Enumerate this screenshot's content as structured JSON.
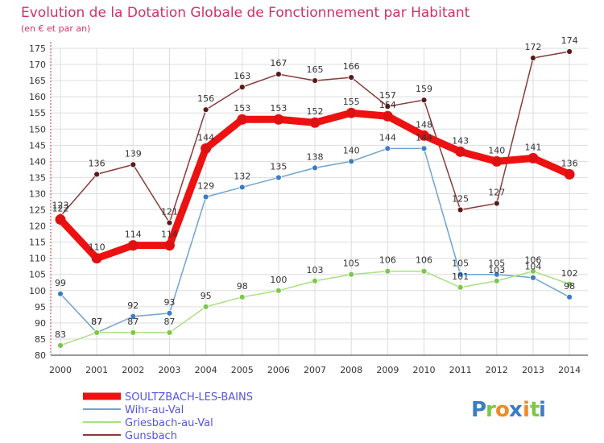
{
  "chart_data": {
    "type": "line",
    "title": "Evolution de la Dotation Globale de Fonctionnement par Habitant",
    "subtitle": "(en € et par an)",
    "ylim": [
      80,
      175
    ],
    "yticks": [
      80,
      85,
      90,
      95,
      100,
      105,
      110,
      115,
      120,
      125,
      130,
      135,
      140,
      145,
      150,
      155,
      160,
      165,
      170,
      175
    ],
    "x": [
      "2000",
      "2001",
      "2002",
      "2003",
      "2004",
      "2005",
      "2006",
      "2007",
      "2008",
      "2009",
      "2010",
      "2011",
      "2012",
      "2013",
      "2014"
    ],
    "grid": true,
    "legend_position": "bottom-left",
    "series": [
      {
        "name": "Gunsbach",
        "color": "#8b3a3a",
        "marker": "#5a1a1a",
        "width": "thin",
        "values": [
          123,
          136,
          139,
          121,
          156,
          163,
          167,
          165,
          166,
          157,
          159,
          125,
          127,
          172,
          174
        ]
      },
      {
        "name": "Wihr-au-Val",
        "color": "#6fa3d0",
        "marker": "#3c7cc4",
        "width": "thin",
        "values": [
          99,
          87,
          92,
          93,
          129,
          132,
          135,
          138,
          140,
          144,
          144,
          105,
          105,
          104,
          98
        ]
      },
      {
        "name": "Griesbach-au-Val",
        "color": "#a8e080",
        "marker": "#7cc84a",
        "width": "thin",
        "values": [
          83,
          87,
          87,
          87,
          95,
          98,
          100,
          103,
          105,
          106,
          106,
          101,
          103,
          106,
          102
        ]
      },
      {
        "name": "SOULTZBACH-LES-BAINS",
        "color": "#ee1111",
        "marker": "#dd1111",
        "width": "thick",
        "values": [
          122,
          110,
          114,
          114,
          144,
          153,
          153,
          152,
          155,
          154,
          148,
          143,
          140,
          141,
          136
        ]
      }
    ],
    "legend": [
      {
        "name": "SOULTZBACH-LES-BAINS",
        "color": "#ee1111",
        "text_color": "#5555dd"
      },
      {
        "name": "Wihr-au-Val",
        "color": "#6fa3d0",
        "text_color": "#5555dd"
      },
      {
        "name": "Griesbach-au-Val",
        "color": "#a8e080",
        "text_color": "#5555dd"
      },
      {
        "name": "Gunsbach",
        "color": "#8b3a3a",
        "text_color": "#5555dd"
      }
    ]
  },
  "brand": {
    "letters": [
      "P",
      "r",
      "o",
      "x",
      "i",
      "t",
      "i"
    ],
    "colors": [
      "#3c7cc4",
      "#7cc84a",
      "#f08a24",
      "#3c7cc4",
      "#f08a24",
      "#7cc84a",
      "#3c7cc4"
    ]
  }
}
